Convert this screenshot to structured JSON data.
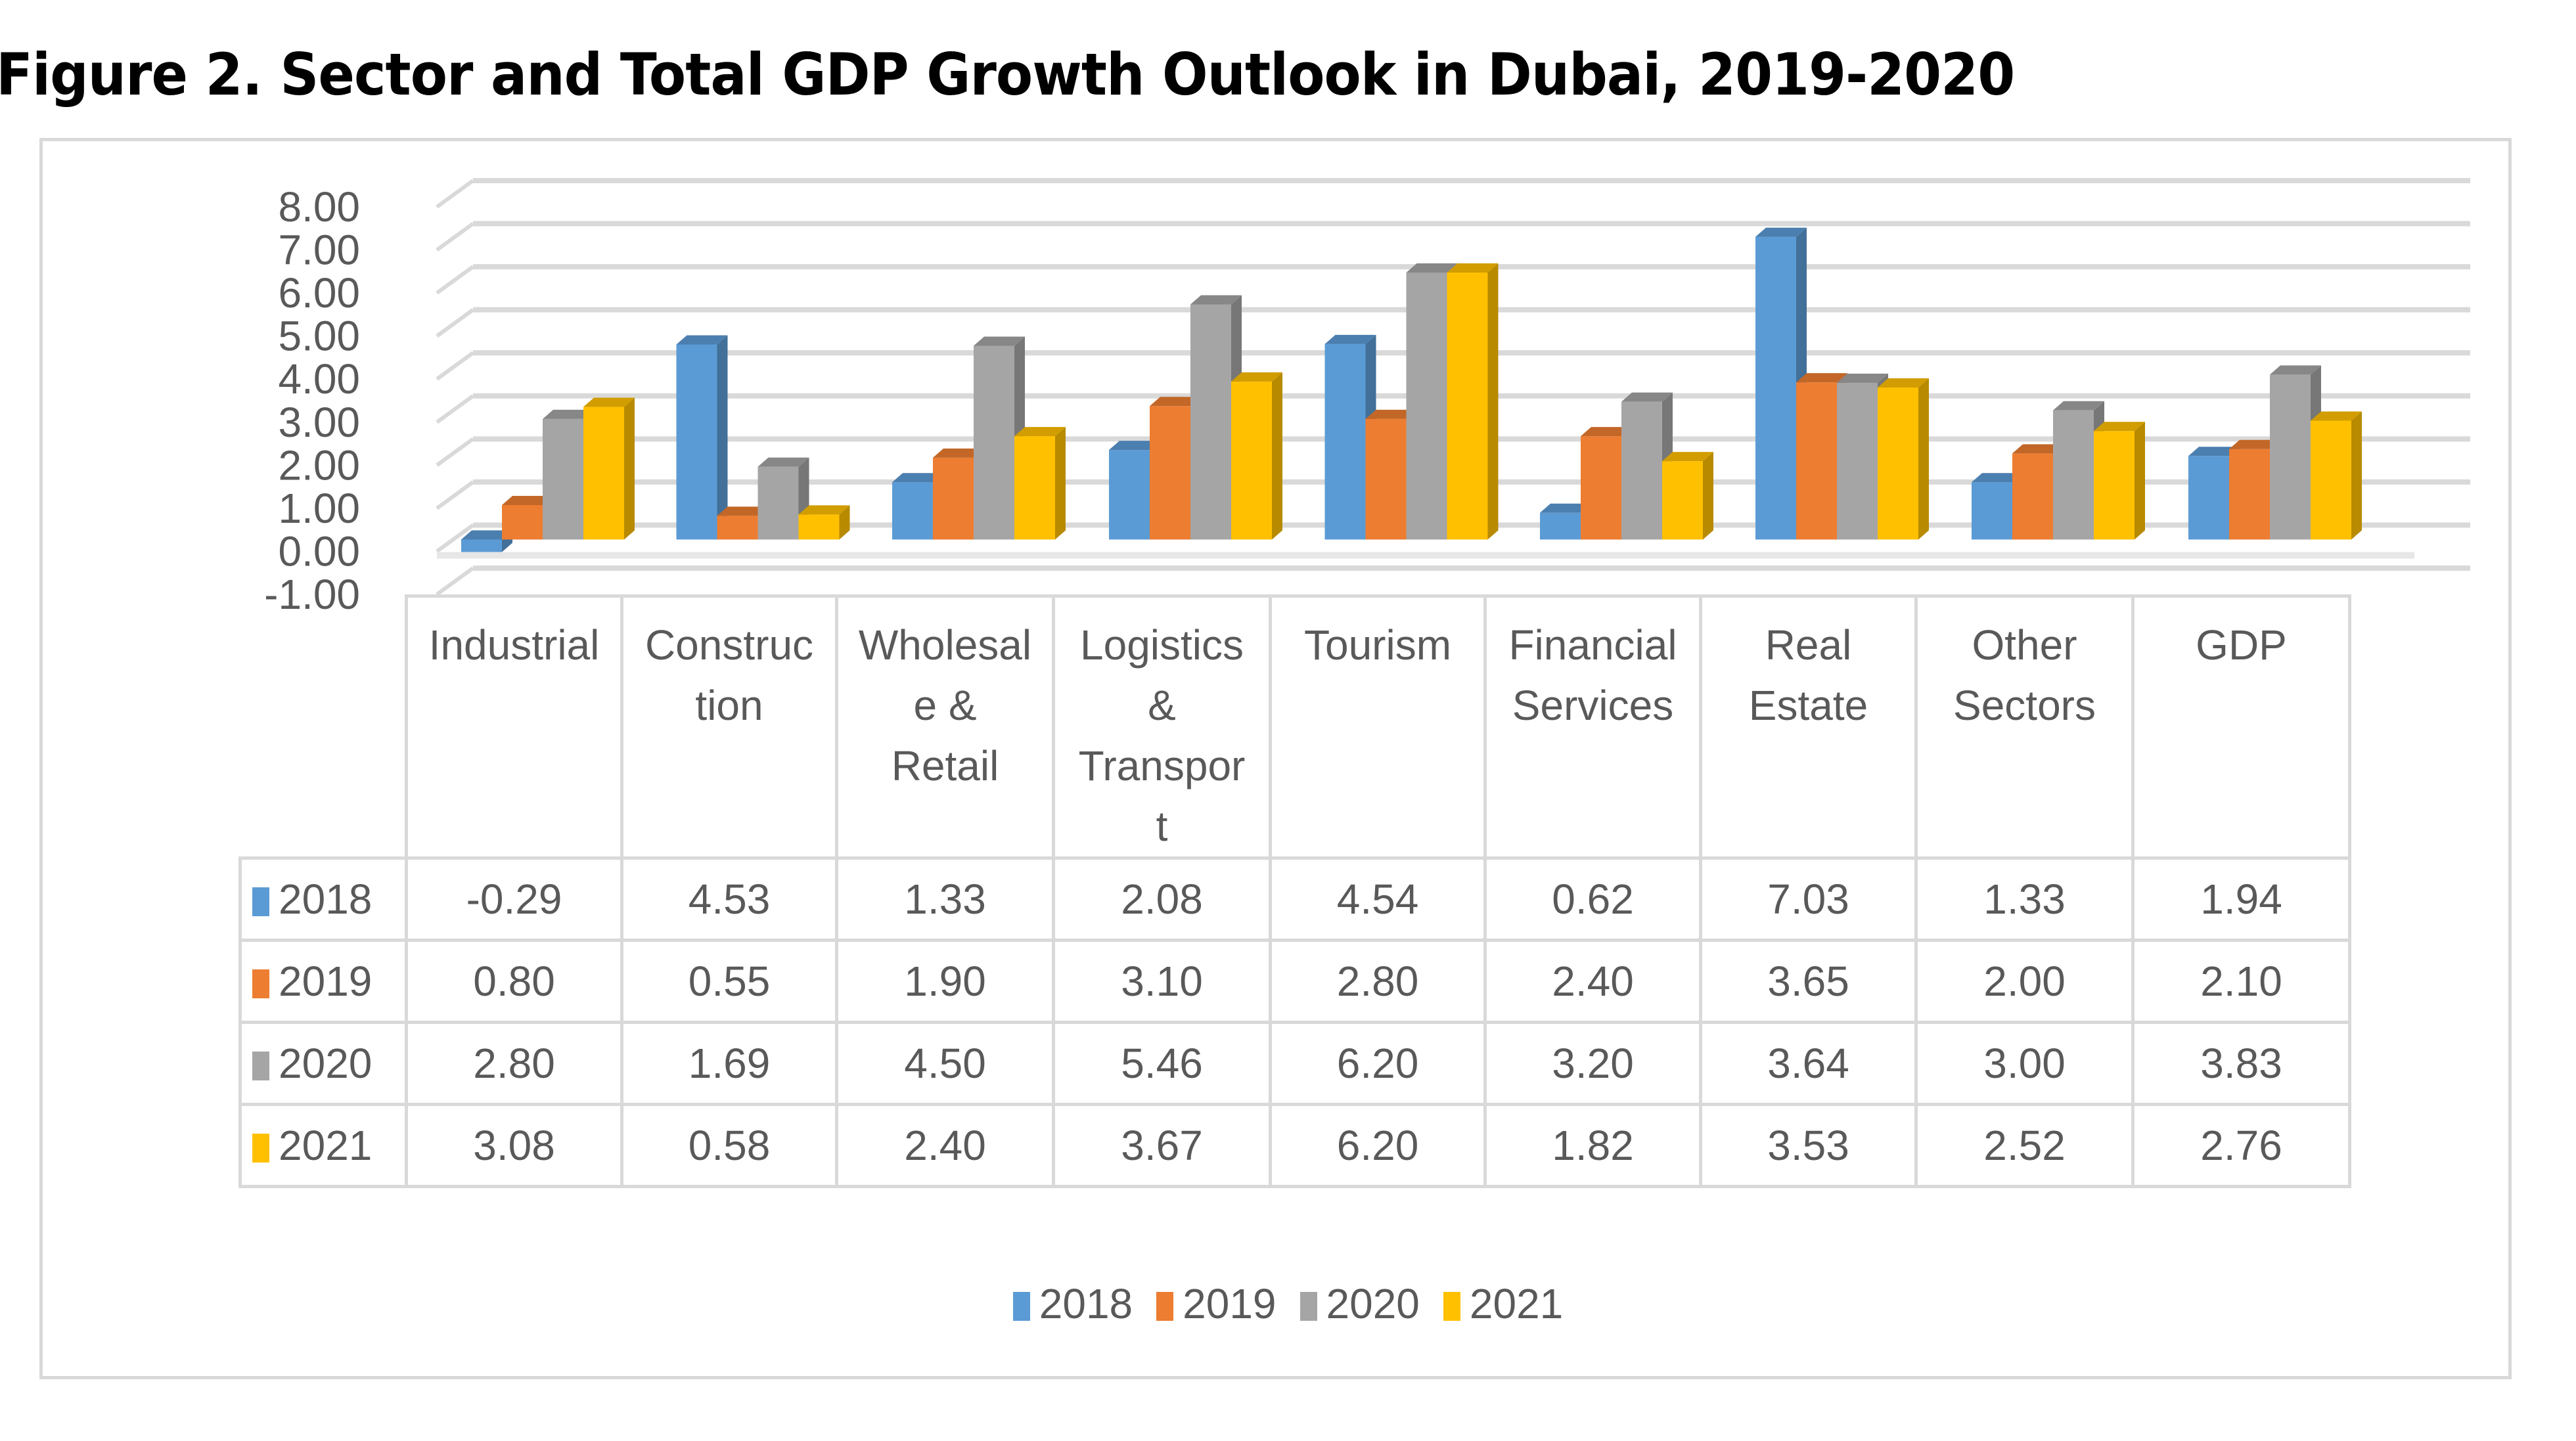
{
  "title": "Figure 2. Sector and Total GDP Growth Outlook in Dubai, 2019-2020",
  "chart_data": {
    "type": "bar",
    "style": "3d-clustered-column-with-data-table",
    "title": "Figure 2. Sector and Total GDP Growth Outlook in Dubai, 2019-2020",
    "xlabel": "",
    "ylabel": "",
    "ylim": [
      -1,
      8
    ],
    "yticks": [
      "8.00",
      "7.00",
      "6.00",
      "5.00",
      "4.00",
      "3.00",
      "2.00",
      "1.00",
      "0.00",
      "-1.00"
    ],
    "grid": true,
    "legend_position": "bottom",
    "categories": [
      "Industrial",
      "Construction",
      "Wholesale & Retail",
      "Logistics & Transport",
      "Tourism",
      "Financial Services",
      "Real Estate",
      "Other Sectors",
      "GDP"
    ],
    "category_header_lines": [
      [
        "Industrial"
      ],
      [
        "Construc",
        "tion"
      ],
      [
        "Wholesal",
        "e &",
        "Retail"
      ],
      [
        "Logistics",
        "&",
        "Transpor",
        "t"
      ],
      [
        "Tourism"
      ],
      [
        "Financial",
        "Services"
      ],
      [
        "Real",
        "Estate"
      ],
      [
        "Other",
        "Sectors"
      ],
      [
        "GDP"
      ]
    ],
    "series": [
      {
        "name": "2018",
        "color": "#5b9bd5",
        "values": [
          -0.29,
          4.53,
          1.33,
          2.08,
          4.54,
          0.62,
          7.03,
          1.33,
          1.94
        ],
        "labels": [
          "-0.29",
          "4.53",
          "1.33",
          "2.08",
          "4.54",
          "0.62",
          "7.03",
          "1.33",
          "1.94"
        ]
      },
      {
        "name": "2019",
        "color": "#ed7d31",
        "values": [
          0.8,
          0.55,
          1.9,
          3.1,
          2.8,
          2.4,
          3.65,
          2.0,
          2.1
        ],
        "labels": [
          "0.80",
          "0.55",
          "1.90",
          "3.10",
          "2.80",
          "2.40",
          "3.65",
          "2.00",
          "2.10"
        ]
      },
      {
        "name": "2020",
        "color": "#a5a5a5",
        "values": [
          2.8,
          1.69,
          4.5,
          5.46,
          6.2,
          3.2,
          3.64,
          3.0,
          3.83
        ],
        "labels": [
          "2.80",
          "1.69",
          "4.50",
          "5.46",
          "6.20",
          "3.20",
          "3.64",
          "3.00",
          "3.83"
        ]
      },
      {
        "name": "2021",
        "color": "#ffc000",
        "values": [
          3.08,
          0.58,
          2.4,
          3.67,
          6.2,
          1.82,
          3.53,
          2.52,
          2.76
        ],
        "labels": [
          "3.08",
          "0.58",
          "2.40",
          "3.67",
          "6.20",
          "1.82",
          "3.53",
          "2.52",
          "2.76"
        ]
      }
    ]
  }
}
